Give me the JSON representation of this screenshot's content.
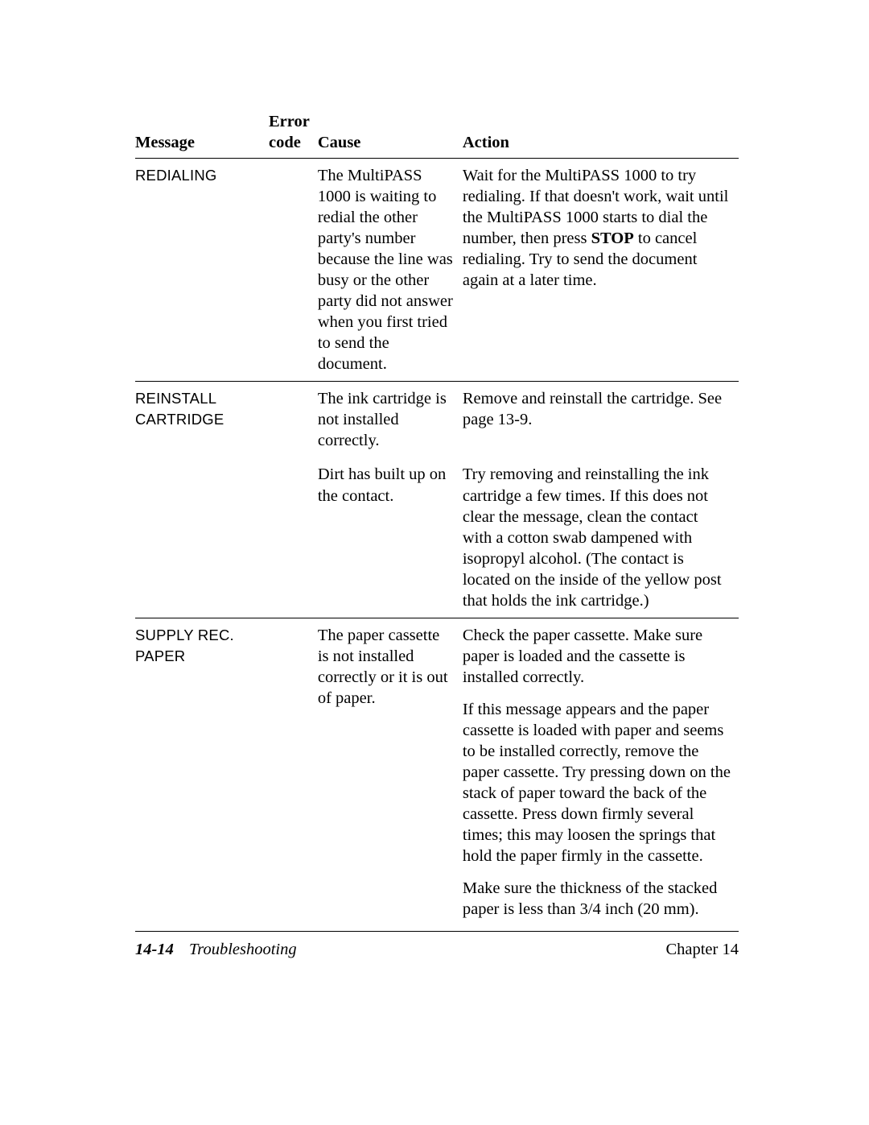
{
  "headers": {
    "message": "Message",
    "error_l1": "Error",
    "error_l2": "code",
    "cause": "Cause",
    "action": "Action"
  },
  "rows": [
    {
      "message": "REDIALING",
      "code": "",
      "causes": [
        "The MultiPASS 1000 is waiting to redial the other party's number because the line was busy or the other party did not answer when you first tried to send the document."
      ],
      "actions": [
        {
          "pre": "Wait for the MultiPASS 1000 to try redialing. If that doesn't work, wait until the MultiPASS 1000 starts to dial the number, then press ",
          "bold": "STOP",
          "post": " to cancel redialing. Try to send the document again at a later time."
        }
      ]
    },
    {
      "message": "REINSTALL CARTRIDGE",
      "code": "",
      "causes": [
        "The ink cartridge is not installed correctly.",
        "Dirt has built up on the contact."
      ],
      "actions": [
        {
          "pre": "Remove and reinstall the cartridge. See page 13-9.",
          "bold": "",
          "post": ""
        },
        {
          "pre": "Try removing and reinstalling the ink cartridge a few times. If this does not clear the message, clean the contact with a cotton swab dampened with isopropyl alcohol. (The contact is located on the inside of the yellow post that holds the ink cartridge.)",
          "bold": "",
          "post": ""
        }
      ]
    },
    {
      "message": "SUPPLY REC. PAPER",
      "code": "",
      "causes": [
        "The paper cassette is not installed correctly or it is out of paper."
      ],
      "actions": [
        {
          "pre": "Check the paper cassette. Make sure paper is loaded and the cassette is installed correctly.",
          "bold": "",
          "post": ""
        },
        {
          "pre": "If this message appears and the paper cassette is loaded with paper and seems to be installed correctly, remove the paper cassette. Try pressing down on the stack of paper toward the back of the cassette. Press down firmly several times; this may loosen the springs that hold the paper firmly in the cassette.",
          "bold": "",
          "post": ""
        },
        {
          "pre": "Make sure the thickness of the stacked paper is less than 3/4 inch (20 mm).",
          "bold": "",
          "post": ""
        }
      ]
    }
  ],
  "footer": {
    "page_num": "14-14",
    "section": "Troubleshooting",
    "chapter": "Chapter 14"
  },
  "colors": {
    "text": "#000000",
    "rule": "#000000",
    "background": "#ffffff"
  },
  "fonts": {
    "body_family": "Palatino",
    "body_size_pt": 11,
    "msg_family": "Arial Narrow"
  }
}
